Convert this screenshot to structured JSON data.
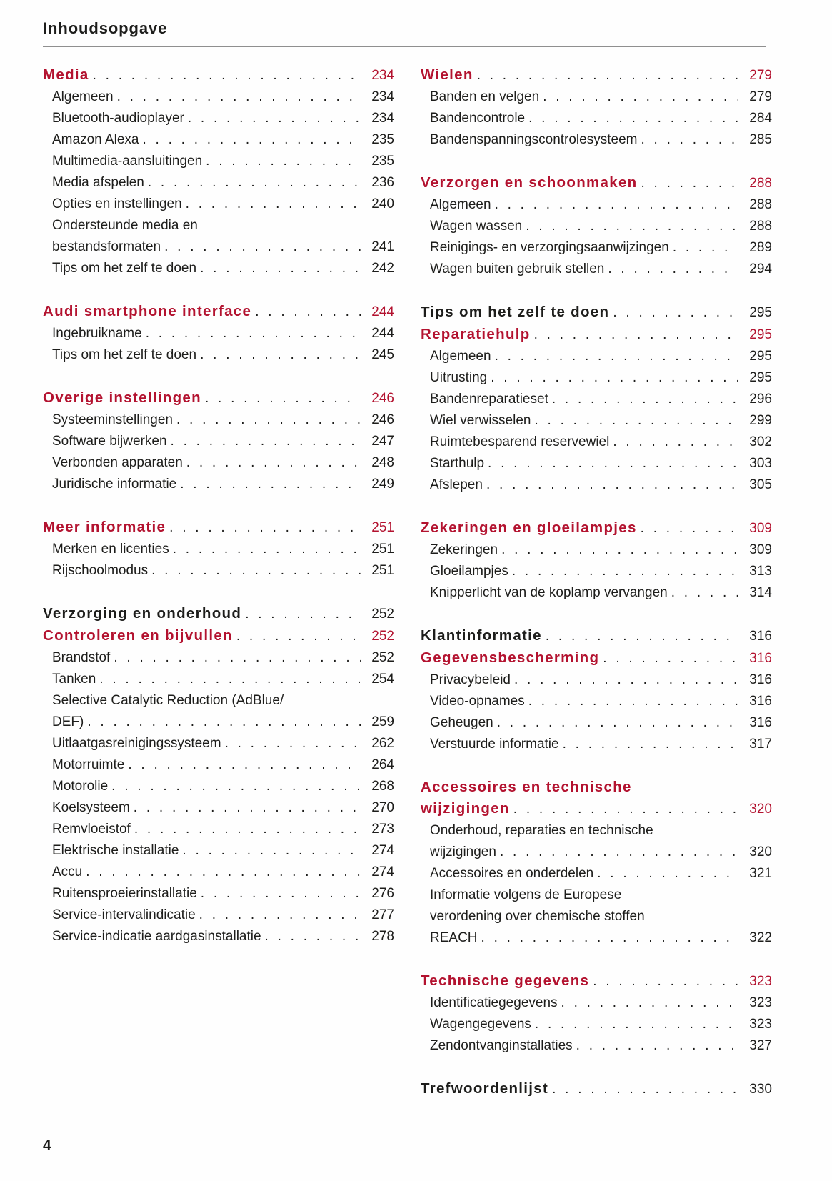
{
  "page": {
    "header_title": "Inhoudsopgave",
    "footer_page_number": "4",
    "colors": {
      "accent": "#b3122f",
      "ink": "#1d1d1b",
      "rule": "#8f8f8f"
    }
  },
  "toc": {
    "columns": [
      {
        "name": "left",
        "sections": [
          {
            "title": "Media",
            "style": "red",
            "page": "234",
            "entries": [
              {
                "label": "Algemeen",
                "page": "234"
              },
              {
                "label": "Bluetooth-audioplayer",
                "page": "234"
              },
              {
                "label": "Amazon Alexa",
                "page": "235"
              },
              {
                "label": "Multimedia-aansluitingen",
                "page": "235"
              },
              {
                "label": "Media afspelen",
                "page": "236"
              },
              {
                "label": "Opties en instellingen",
                "page": "240"
              },
              {
                "label_pre_lines": [
                  "Ondersteunde media en"
                ],
                "label": "bestandsformaten",
                "page": "241"
              },
              {
                "label": "Tips om het zelf te doen",
                "page": "242"
              }
            ]
          },
          {
            "title": "Audi smartphone interface",
            "style": "red",
            "page": "244",
            "entries": [
              {
                "label": "Ingebruikname",
                "page": "244"
              },
              {
                "label": "Tips om het zelf te doen",
                "page": "245"
              }
            ]
          },
          {
            "title": "Overige instellingen",
            "style": "red",
            "page": "246",
            "entries": [
              {
                "label": "Systeeminstellingen",
                "page": "246"
              },
              {
                "label": "Software bijwerken",
                "page": "247"
              },
              {
                "label": "Verbonden apparaten",
                "page": "248"
              },
              {
                "label": "Juridische informatie",
                "page": "249"
              }
            ]
          },
          {
            "title": "Meer informatie",
            "style": "red",
            "page": "251",
            "entries": [
              {
                "label": "Merken en licenties",
                "page": "251"
              },
              {
                "label": "Rijschoolmodus",
                "page": "251"
              }
            ]
          },
          {
            "title": "Verzorging en onderhoud",
            "style": "black",
            "page": "252",
            "entries": []
          },
          {
            "title": "Controleren en bijvullen",
            "style": "red",
            "page": "252",
            "attached": true,
            "entries": [
              {
                "label": "Brandstof",
                "page": "252"
              },
              {
                "label": "Tanken",
                "page": "254"
              },
              {
                "label_pre_lines": [
                  "Selective Catalytic Reduction (AdBlue/"
                ],
                "label": "DEF)",
                "page": "259"
              },
              {
                "label": "Uitlaatgasreinigingssysteem",
                "page": "262"
              },
              {
                "label": "Motorruimte",
                "page": "264"
              },
              {
                "label": "Motorolie",
                "page": "268"
              },
              {
                "label": "Koelsysteem",
                "page": "270"
              },
              {
                "label": "Remvloeistof",
                "page": "273"
              },
              {
                "label": "Elektrische installatie",
                "page": "274"
              },
              {
                "label": "Accu",
                "page": "274"
              },
              {
                "label": "Ruitensproeierinstallatie",
                "page": "276"
              },
              {
                "label": "Service-intervalindicatie",
                "page": "277"
              },
              {
                "label": "Service-indicatie aardgasinstallatie",
                "page": "278"
              }
            ]
          }
        ]
      },
      {
        "name": "right",
        "sections": [
          {
            "title": "Wielen",
            "style": "red",
            "page": "279",
            "entries": [
              {
                "label": "Banden en velgen",
                "page": "279"
              },
              {
                "label": "Bandencontrole",
                "page": "284"
              },
              {
                "label": "Bandenspanningscontrolesysteem",
                "page": "285"
              }
            ]
          },
          {
            "title": "Verzorgen en schoonmaken",
            "style": "red",
            "page": "288",
            "entries": [
              {
                "label": "Algemeen",
                "page": "288"
              },
              {
                "label": "Wagen wassen",
                "page": "288"
              },
              {
                "label": "Reinigings- en verzorgingsaanwijzingen",
                "page": "289"
              },
              {
                "label": "Wagen buiten gebruik stellen",
                "page": "294"
              }
            ]
          },
          {
            "title": "Tips om het zelf te doen",
            "style": "black",
            "page": "295",
            "entries": []
          },
          {
            "title": "Reparatiehulp",
            "style": "red",
            "page": "295",
            "attached": true,
            "entries": [
              {
                "label": "Algemeen",
                "page": "295"
              },
              {
                "label": "Uitrusting",
                "page": "295"
              },
              {
                "label": "Bandenreparatieset",
                "page": "296"
              },
              {
                "label": "Wiel verwisselen",
                "page": "299"
              },
              {
                "label": "Ruimtebesparend reservewiel",
                "page": "302"
              },
              {
                "label": "Starthulp",
                "page": "303"
              },
              {
                "label": "Afslepen",
                "page": "305"
              }
            ]
          },
          {
            "title": "Zekeringen en gloeilampjes",
            "style": "red",
            "page": "309",
            "entries": [
              {
                "label": "Zekeringen",
                "page": "309"
              },
              {
                "label": "Gloeilampjes",
                "page": "313"
              },
              {
                "label": "Knipperlicht van de koplamp vervangen",
                "page": "314"
              }
            ]
          },
          {
            "title": "Klantinformatie",
            "style": "black",
            "page": "316",
            "entries": []
          },
          {
            "title": "Gegevensbescherming",
            "style": "red",
            "page": "316",
            "attached": true,
            "entries": [
              {
                "label": "Privacybeleid",
                "page": "316"
              },
              {
                "label": "Video-opnames",
                "page": "316"
              },
              {
                "label": "Geheugen",
                "page": "316"
              },
              {
                "label": "Verstuurde informatie",
                "page": "317"
              }
            ]
          },
          {
            "title_pre_lines": [
              "Accessoires en technische"
            ],
            "title": "wijzigingen",
            "style": "red",
            "page": "320",
            "entries": [
              {
                "label_pre_lines": [
                  "Onderhoud, reparaties en technische"
                ],
                "label": "wijzigingen",
                "page": "320"
              },
              {
                "label": "Accessoires en onderdelen",
                "page": "321"
              },
              {
                "label_pre_lines": [
                  "Informatie volgens de Europese",
                  "verordening over chemische stoffen"
                ],
                "label": "REACH",
                "page": "322"
              }
            ]
          },
          {
            "title": "Technische gegevens",
            "style": "red",
            "page": "323",
            "entries": [
              {
                "label": "Identificatiegegevens",
                "page": "323"
              },
              {
                "label": "Wagengegevens",
                "page": "323"
              },
              {
                "label": "Zendontvanginstallaties",
                "page": "327"
              }
            ]
          },
          {
            "title": "Trefwoordenlijst",
            "style": "black",
            "page": "330",
            "entries": []
          }
        ]
      }
    ]
  }
}
